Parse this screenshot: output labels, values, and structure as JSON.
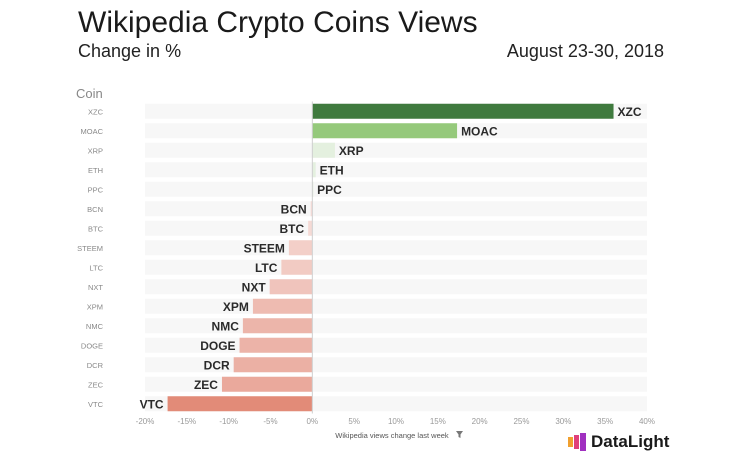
{
  "title": "Wikipedia Crypto Coins Views",
  "subtitle": "Change in %",
  "date_range": "August 23-30, 2018",
  "brand": "DataLight",
  "colors": {
    "top": "#3f7a3e",
    "second": "#95c97b",
    "light_pos": "#e4f0df",
    "neg_light": "#f6dcd8",
    "neg_dark": "#e28b78"
  },
  "chart_data": {
    "type": "bar",
    "orientation": "horizontal",
    "row_header": "Coin",
    "xlabel": "Wikipedia views change last week",
    "xlim": [
      -20,
      40
    ],
    "xticks": [
      -20,
      -15,
      -10,
      -5,
      0,
      5,
      10,
      15,
      20,
      25,
      30,
      35,
      40
    ],
    "tick_suffix": "%",
    "categories": [
      "XZC",
      "MOAC",
      "XRP",
      "ETH",
      "PPC",
      "BCN",
      "BTC",
      "STEEM",
      "LTC",
      "NXT",
      "XPM",
      "NMC",
      "DOGE",
      "DCR",
      "ZEC",
      "VTC"
    ],
    "values": [
      36,
      17.3,
      2.7,
      0.4,
      0.1,
      -0.2,
      -0.5,
      -2.8,
      -3.7,
      -5.1,
      -7.1,
      -8.3,
      -8.7,
      -9.4,
      -10.8,
      -17.3
    ]
  }
}
